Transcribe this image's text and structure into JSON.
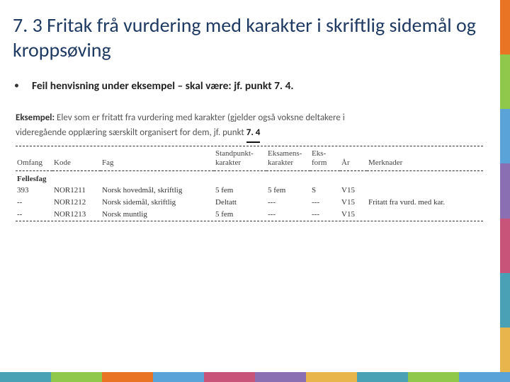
{
  "title": "7. 3 Fritak frå vurdering med karakter i skriftlig sidemål og kroppsøving",
  "bullet": "Feil henvisning under eksempel – skal være: jf. punkt 7. 4.",
  "example": {
    "label": "Eksempel:",
    "line1_rest": " Elev som er fritatt fra vurdering med karakter (gjelder også voksne deltakere i",
    "line2_pre": "videregående opplæring særskilt organisert for dem, jf. punkt ",
    "emph": "7. 4"
  },
  "table": {
    "headers": {
      "omfang": "Omfang",
      "kode": "Kode",
      "fag": "Fag",
      "stand": "Standpunkt-\nkarakter",
      "eksk": "Eksamens-\nkarakter",
      "eksf": "Eks-\nform",
      "ar": "År",
      "merk": "Merknader"
    },
    "category": "Fellesfag",
    "rows": [
      {
        "omfang": "393",
        "kode": "NOR1211",
        "fag": "Norsk hovedmål, skriftlig",
        "stand": "5 fem",
        "eksk": "5 fem",
        "eksf": "S",
        "ar": "V15",
        "merk": ""
      },
      {
        "omfang": "--",
        "kode": "NOR1212",
        "fag": "Norsk sidemål, skriftlig",
        "stand": "Deltatt",
        "eksk": "---",
        "eksf": "---",
        "ar": "V15",
        "merk": "Fritatt fra vurd. med kar."
      },
      {
        "omfang": "--",
        "kode": "NOR1213",
        "fag": "Norsk muntlig",
        "stand": "5 fem",
        "eksk": "---",
        "eksf": "---",
        "ar": "V15",
        "merk": ""
      }
    ]
  },
  "colors": {
    "title": "#1f3a63",
    "side": [
      "#e87424",
      "#90c84c",
      "#5aa3d8",
      "#8a6fb3",
      "#c8547a",
      "#4aa0b5",
      "#e8b44c"
    ],
    "bottom": [
      "#4aa0b5",
      "#90c84c",
      "#e87424",
      "#5aa3d8",
      "#c8547a",
      "#8a6fb3",
      "#e8b44c",
      "#4aa0b5",
      "#90c84c",
      "#5aa3d8"
    ]
  }
}
